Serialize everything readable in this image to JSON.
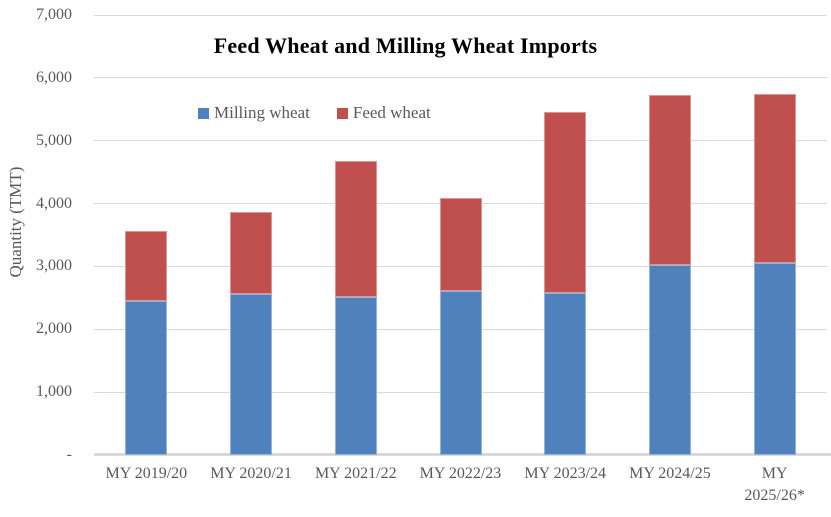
{
  "chart_data": {
    "type": "bar",
    "stacked": true,
    "title": "Feed Wheat and Milling Wheat Imports",
    "ylabel": "Quantity (TMT)",
    "xlabel": "",
    "categories": [
      "MY 2019/20",
      "MY 2020/21",
      "MY 2021/22",
      "MY 2022/23",
      "MY 2023/24",
      "MY 2024/25",
      "MY\n2025/26*"
    ],
    "series": [
      {
        "name": "Milling wheat",
        "color": "#4F81BD",
        "values": [
          2450,
          2560,
          2510,
          2610,
          2570,
          3030,
          3050
        ]
      },
      {
        "name": "Feed wheat",
        "color": "#C0504D",
        "values": [
          1110,
          1300,
          2170,
          1480,
          2890,
          2700,
          2700
        ]
      }
    ],
    "totals": [
      3560,
      3860,
      4680,
      4090,
      5460,
      5730,
      5750
    ],
    "ylim": [
      0,
      7000
    ],
    "yticks": [
      {
        "value": 0,
        "label": "-"
      },
      {
        "value": 1000,
        "label": "1,000"
      },
      {
        "value": 2000,
        "label": "2,000"
      },
      {
        "value": 3000,
        "label": "3,000"
      },
      {
        "value": 4000,
        "label": "4,000"
      },
      {
        "value": 5000,
        "label": "5,000"
      },
      {
        "value": 6000,
        "label": "6,000"
      },
      {
        "value": 7000,
        "label": "7,000"
      }
    ],
    "grid": true,
    "legend_position": "top-center-inside",
    "colors": {
      "gridline": "#D9D9D9",
      "axis_line": "#D9D9D9",
      "tick_text": "#595959",
      "title_text": "#000000"
    }
  }
}
